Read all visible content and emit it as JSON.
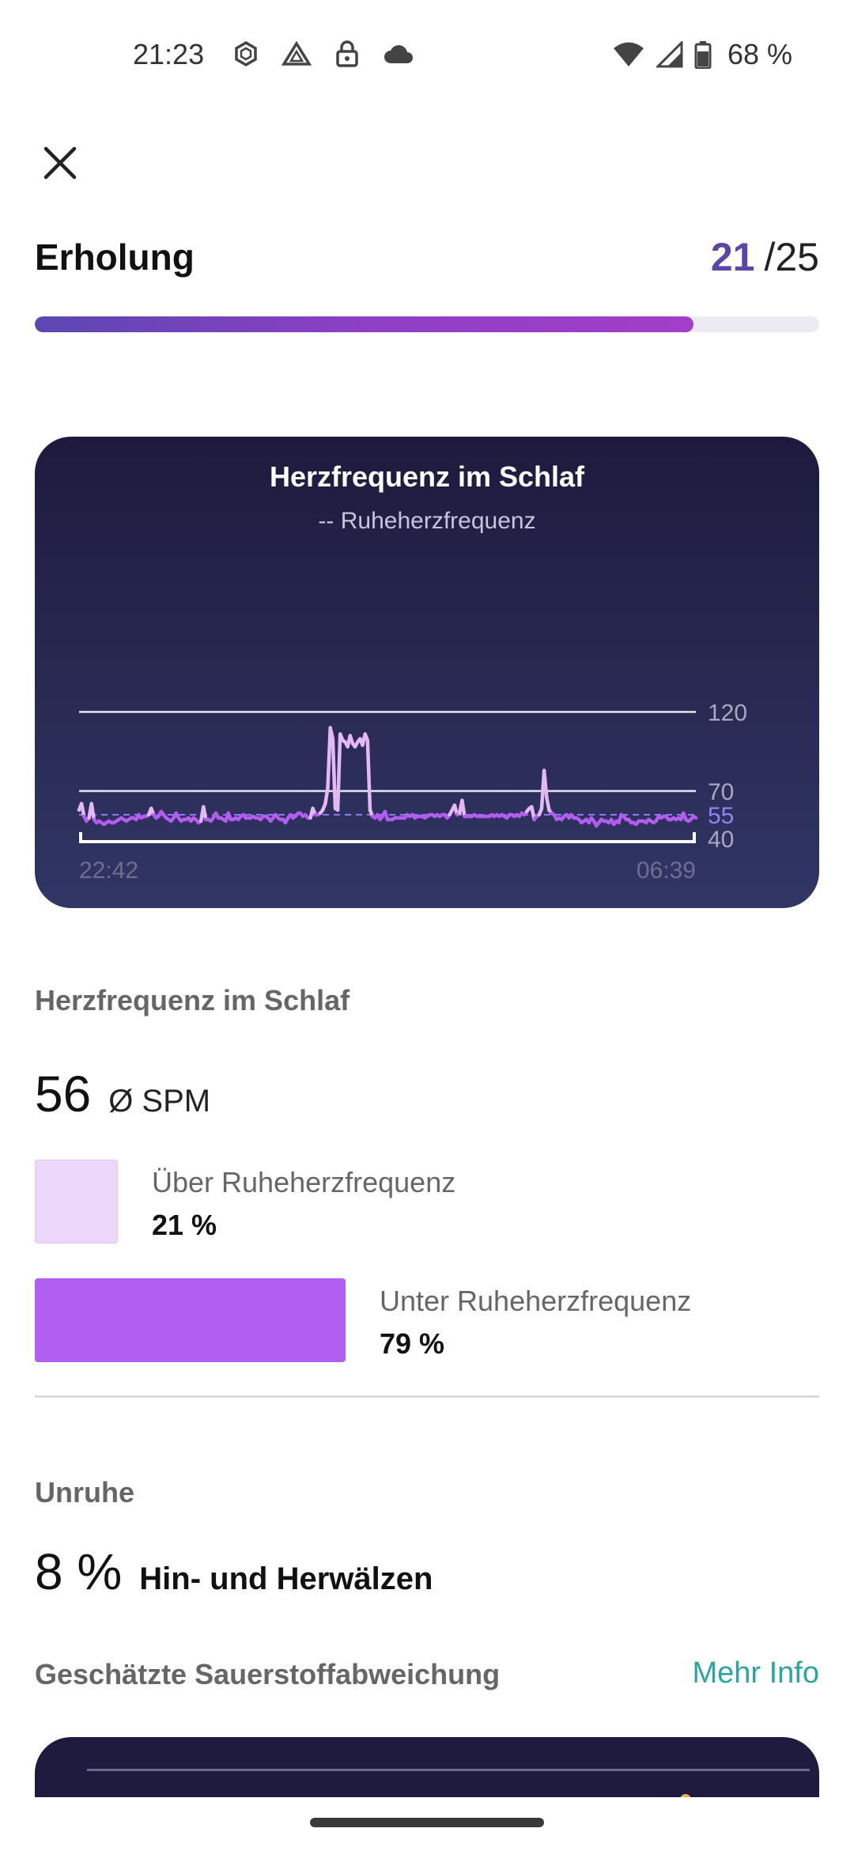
{
  "status_bar": {
    "time": "21:23",
    "left_icons": [
      "sync-icon",
      "drive-icon",
      "lock-icon",
      "cloud-icon"
    ],
    "right_icons": [
      "wifi-icon",
      "signal-icon",
      "battery-icon"
    ],
    "battery": "68 %"
  },
  "header": {
    "title": "Erholung",
    "score": "21",
    "score_max": "/25",
    "progress_fraction": 0.84
  },
  "chart": {
    "title": "Herzfrequenz im Schlaf",
    "subtitle": "-- Ruheherzfrequenz"
  },
  "chart_data": {
    "type": "line",
    "title": "Herzfrequenz im Schlaf",
    "subtitle": "-- Ruheherzfrequenz",
    "x_labels": [
      "22:42",
      "06:39"
    ],
    "y_ticks": [
      120,
      70,
      55,
      40
    ],
    "ylim": [
      40,
      120
    ],
    "resting_rate": 55,
    "grid": true,
    "colors": {
      "above": "#e3b8f5",
      "below": "#b35df0",
      "resting_line": "#8a7cf0",
      "grid": "#e8e6f2"
    },
    "series": [
      {
        "values": [
          58,
          62,
          54,
          51,
          53,
          62,
          52,
          50,
          51,
          50,
          49,
          50,
          51,
          50,
          50,
          51,
          52,
          53,
          52,
          51,
          52,
          53,
          53,
          52,
          55,
          53,
          54,
          54,
          55,
          59,
          55,
          53,
          54,
          57,
          55,
          53,
          52,
          51,
          53,
          56,
          53,
          51,
          52,
          52,
          53,
          51,
          53,
          52,
          50,
          51,
          60,
          52,
          52,
          51,
          53,
          56,
          53,
          53,
          52,
          51,
          56,
          52,
          52,
          53,
          52,
          54,
          55,
          53,
          53,
          53,
          54,
          53,
          53,
          52,
          54,
          54,
          53,
          51,
          53,
          55,
          53,
          52,
          52,
          50,
          53,
          55,
          53,
          54,
          56,
          56,
          54,
          55,
          53,
          53,
          59,
          55,
          55,
          56,
          58,
          62,
          72,
          110,
          103,
          59,
          58,
          106,
          102,
          101,
          98,
          105,
          100,
          98,
          101,
          103,
          99,
          106,
          102,
          58,
          54,
          53,
          55,
          52,
          54,
          57,
          52,
          52,
          52,
          53,
          53,
          53,
          53,
          53,
          55,
          54,
          55,
          53,
          54,
          54,
          54,
          53,
          54,
          55,
          55,
          54,
          55,
          54,
          55,
          55,
          53,
          55,
          58,
          61,
          55,
          56,
          64,
          54,
          54,
          54,
          54,
          55,
          54,
          54,
          54,
          54,
          54,
          54,
          55,
          54,
          55,
          54,
          55,
          54,
          53,
          55,
          55,
          54,
          55,
          54,
          56,
          55,
          57,
          59,
          60,
          52,
          54,
          55,
          59,
          83,
          66,
          58,
          56,
          55,
          52,
          53,
          52,
          54,
          55,
          53,
          55,
          53,
          53,
          52,
          50,
          51,
          52,
          50,
          53,
          51,
          48,
          50,
          52,
          51,
          51,
          50,
          52,
          49,
          51,
          50,
          55,
          54,
          52,
          52,
          50,
          50,
          49,
          51,
          51,
          51,
          50,
          52,
          51,
          50,
          51,
          54,
          53,
          54,
          54,
          52,
          52,
          53,
          52,
          53,
          52,
          56,
          52,
          51,
          52,
          54,
          53
        ]
      }
    ]
  },
  "heart_rate": {
    "heading": "Herzfrequenz im Schlaf",
    "value": "56",
    "unit": "Ø SPM",
    "above_label": "Über Ruheherzfrequenz",
    "above_value": "21 %",
    "above_fraction": 0.21,
    "below_label": "Unter Ruheherzfrequenz",
    "below_value": "79 %",
    "below_fraction": 0.79
  },
  "restlessness": {
    "heading": "Unruhe",
    "value": "8 %",
    "description": "Hin- und Herwälzen"
  },
  "oxygen": {
    "heading": "Geschätzte Sauerstoffabweichung",
    "more_info": "Mehr Info"
  }
}
